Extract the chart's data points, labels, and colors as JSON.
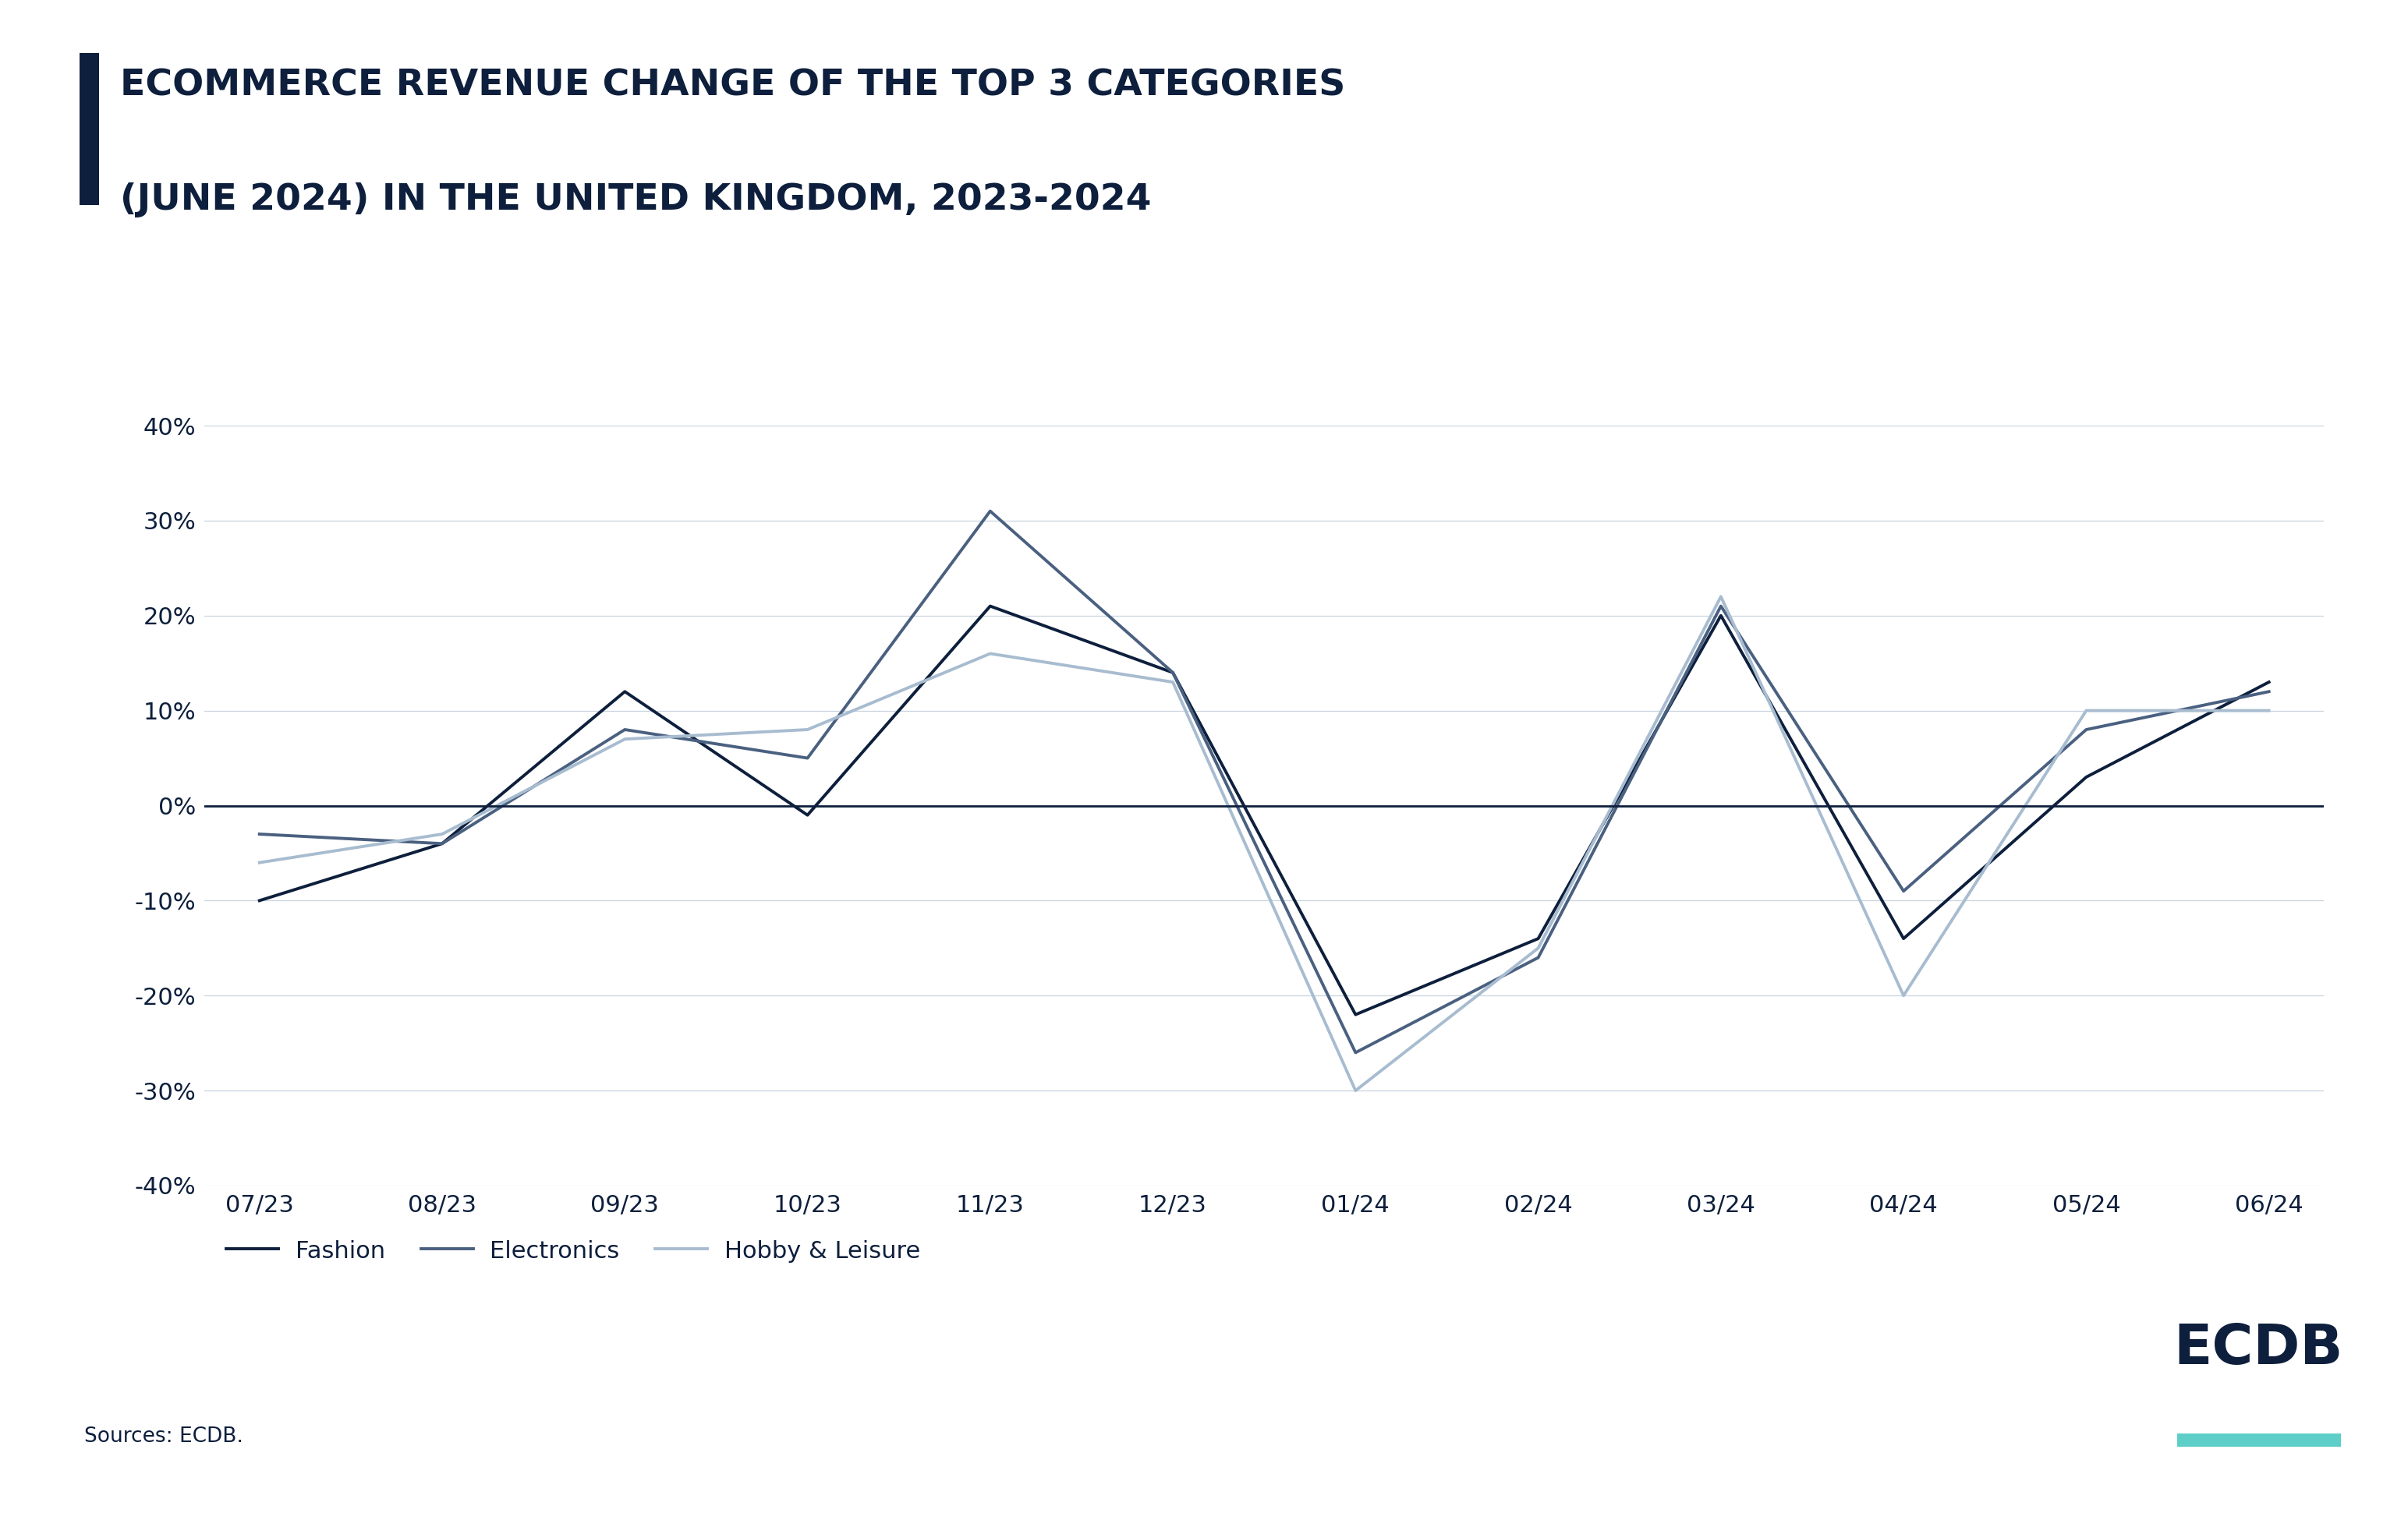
{
  "title_line1": "ECOMMERCE REVENUE CHANGE OF THE TOP 3 CATEGORIES",
  "title_line2": "(JUNE 2024) IN THE UNITED KINGDOM, 2023-2024",
  "title_color": "#0d1f3c",
  "accent_bar_color": "#0d1f3c",
  "background_color": "#ffffff",
  "source_text": "Sources: ECDB.",
  "ecdb_text": "ECDB",
  "ecdb_underline_color": "#5ecec8",
  "x_labels": [
    "07/23",
    "08/23",
    "09/23",
    "10/23",
    "11/23",
    "12/23",
    "01/24",
    "02/24",
    "03/24",
    "04/24",
    "05/24",
    "06/24"
  ],
  "fashion": [
    -10,
    -4,
    12,
    -1,
    21,
    14,
    -22,
    -14,
    20,
    -14,
    3,
    13
  ],
  "electronics": [
    -3,
    -4,
    8,
    5,
    31,
    14,
    -26,
    -16,
    21,
    -9,
    8,
    12
  ],
  "hobby_leisure": [
    -6,
    -3,
    7,
    8,
    16,
    13,
    -30,
    -15,
    22,
    -20,
    10,
    10
  ],
  "fashion_color": "#0d1f3c",
  "electronics_color": "#4a6080",
  "hobby_leisure_color": "#a8bcd0",
  "line_width": 2.8,
  "ylim": [
    -40,
    40
  ],
  "yticks": [
    -40,
    -30,
    -20,
    -10,
    0,
    10,
    20,
    30,
    40
  ],
  "grid_color": "#c8d4e0",
  "zero_line_color": "#0d1f3c",
  "title_fontsize": 34,
  "tick_fontsize": 22,
  "legend_fontsize": 22,
  "source_fontsize": 19
}
